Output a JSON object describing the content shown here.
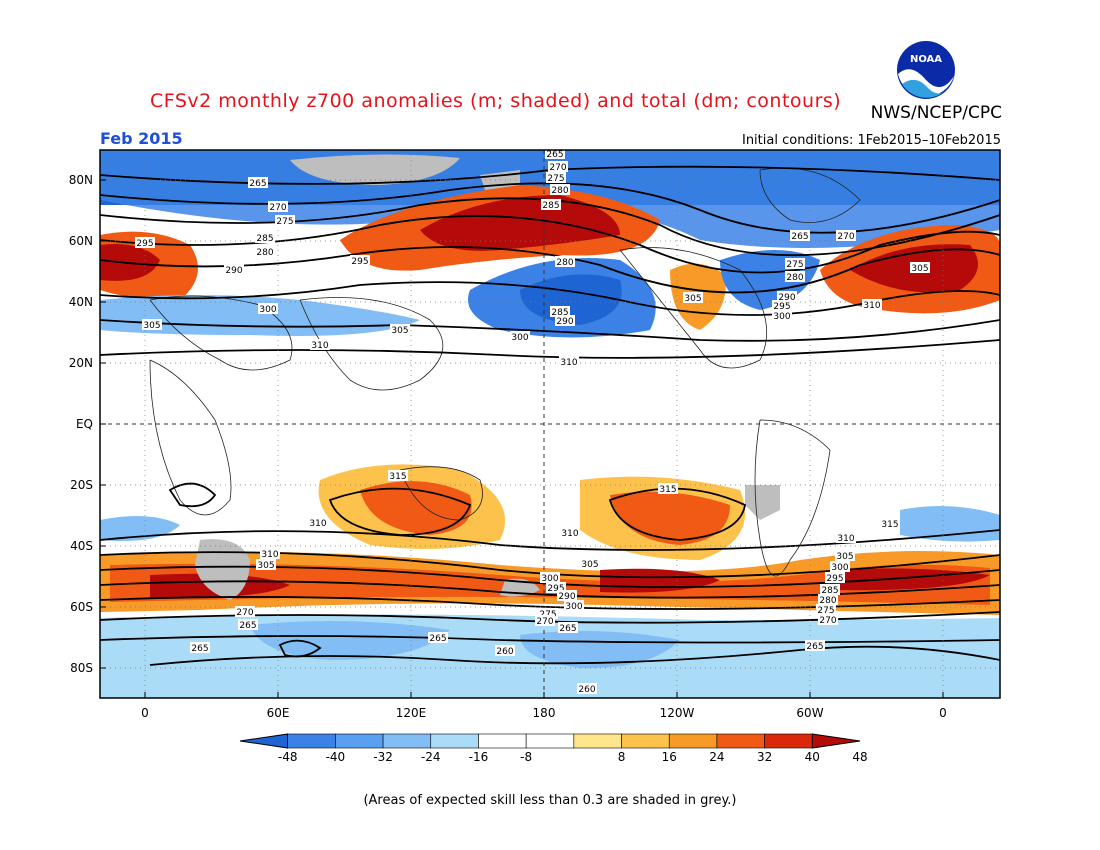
{
  "title": "CFSv2 monthly z700 anomalies (m; shaded) and total (dm; contours)",
  "org": "NWS/NCEP/CPC",
  "logo_text": "NOAA",
  "month": "Feb 2015",
  "initial_conditions": "Initial conditions: 1Feb2015–10Feb2015",
  "footnote": "(Areas of expected skill less than 0.3 are shaded in grey.)",
  "lat_labels": [
    "80N",
    "60N",
    "40N",
    "20N",
    "EQ",
    "20S",
    "40S",
    "60S",
    "80S"
  ],
  "lon_labels": [
    "0",
    "60E",
    "120E",
    "180",
    "120W",
    "60W",
    "0"
  ],
  "colorbar": {
    "ticks": [
      "-48",
      "-40",
      "-32",
      "-24",
      "-16",
      "-8",
      "8",
      "16",
      "24",
      "32",
      "40",
      "48"
    ],
    "colors": [
      "#1e64d2",
      "#3c82e6",
      "#5aa0f0",
      "#82bef5",
      "#aadcf8",
      "#ffffff",
      "#ffe68c",
      "#fcc24c",
      "#f89a28",
      "#f05a14",
      "#dc280a",
      "#b40a0a"
    ]
  },
  "contour_labels": [
    "265",
    "270",
    "275",
    "280",
    "285",
    "290",
    "295",
    "300",
    "305",
    "310",
    "315",
    "260"
  ],
  "colors": {
    "title": "#e8111b",
    "month": "#1f4fd8",
    "skill_mask": "#bebebe"
  }
}
